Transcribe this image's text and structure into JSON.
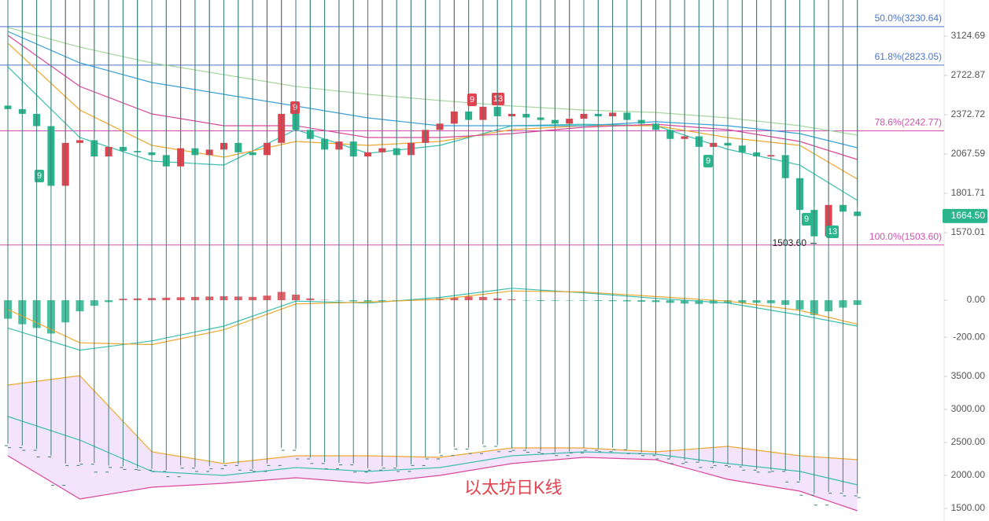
{
  "watermark": "以太坊日K线",
  "chart_data": [
    {
      "type": "candlestick",
      "log_scale": true,
      "ylim": [
        1430,
        3546
      ],
      "yticks": [
        3124.69,
        2722.87,
        2372.72,
        2067.59,
        1801.71,
        1570.01
      ],
      "up_color": "#e0434f",
      "down_color": "#2bb58d",
      "open": [
        2450,
        2420,
        2380,
        2280,
        1850,
        2150,
        2170,
        2050,
        2120,
        2090,
        2080,
        2060,
        1980,
        2110,
        2060,
        2100,
        2150,
        2080,
        2060,
        2150,
        2380,
        2250,
        2180,
        2100,
        2160,
        2050,
        2080,
        2110,
        2060,
        2150,
        2250,
        2300,
        2400,
        2330,
        2440,
        2360,
        2380,
        2350,
        2330,
        2300,
        2340,
        2380,
        2360,
        2390,
        2330,
        2300,
        2250,
        2180,
        2200,
        2120,
        2150,
        2130,
        2080,
        2050,
        2060,
        1900,
        1700,
        1550,
        1730,
        1690
      ],
      "high": [
        2480,
        2450,
        2400,
        2300,
        2180,
        2200,
        2190,
        2150,
        2140,
        2110,
        2100,
        2080,
        2150,
        2130,
        2140,
        2190,
        2170,
        2100,
        2180,
        2420,
        2400,
        2270,
        2200,
        2190,
        2180,
        2110,
        2140,
        2130,
        2170,
        2280,
        2330,
        2430,
        2420,
        2470,
        2460,
        2410,
        2400,
        2370,
        2350,
        2360,
        2420,
        2400,
        2420,
        2400,
        2350,
        2320,
        2260,
        2230,
        2210,
        2180,
        2170,
        2150,
        2100,
        2080,
        2070,
        1920,
        1720,
        1750,
        1750,
        1720
      ],
      "low": {
        "value": 1503.6,
        "label": "1503.60"
      },
      "close": [
        2420,
        2380,
        2280,
        1850,
        2150,
        2170,
        2050,
        2120,
        2090,
        2080,
        2060,
        1980,
        2110,
        2060,
        2100,
        2150,
        2080,
        2060,
        2150,
        2380,
        2250,
        2180,
        2100,
        2160,
        2050,
        2080,
        2110,
        2060,
        2150,
        2250,
        2300,
        2400,
        2330,
        2440,
        2360,
        2380,
        2350,
        2330,
        2300,
        2340,
        2380,
        2360,
        2390,
        2330,
        2300,
        2250,
        2180,
        2200,
        2120,
        2150,
        2130,
        2080,
        2050,
        2060,
        1900,
        1700,
        1550,
        1730,
        1690,
        1664.5
      ],
      "ma_x": [
        0,
        5,
        10,
        15,
        20,
        25,
        30,
        35,
        40,
        45,
        50,
        55,
        59
      ],
      "ma": [
        {
          "color": "#3cbfb0",
          "values": [
            2806,
            2191,
            2017,
            1989,
            2252,
            2073,
            2131,
            2283,
            2295,
            2283,
            2102,
            1989,
            1758
          ]
        },
        {
          "color": "#f0a830",
          "values": [
            3048,
            2412,
            2131,
            2045,
            2161,
            2131,
            2161,
            2252,
            2283,
            2283,
            2191,
            2131,
            1894
          ]
        },
        {
          "color": "#d9479c",
          "values": [
            3133,
            2620,
            2379,
            2283,
            2283,
            2191,
            2191,
            2221,
            2271,
            2295,
            2252,
            2161,
            2028
          ]
        },
        {
          "color": "#3aa0d8",
          "values": [
            3176,
            2845,
            2656,
            2549,
            2446,
            2347,
            2283,
            2283,
            2283,
            2315,
            2283,
            2221,
            2114
          ]
        },
        {
          "color": "#a8d8a0",
          "values": [
            3220,
            3006,
            2845,
            2730,
            2620,
            2549,
            2494,
            2446,
            2412,
            2392,
            2347,
            2283,
            2209
          ]
        }
      ],
      "levels": [
        {
          "value": 3230.64,
          "label": "50.0%(3230.64)",
          "color": "#4a74c9"
        },
        {
          "value": 2823.05,
          "label": "61.8%(2823.05)",
          "color": "#4a74c9"
        },
        {
          "value": 2242.77,
          "label": "78.6%(2242.77)",
          "color": "#d04fb0"
        },
        {
          "value": 1503.6,
          "label": "100.0%(1503.60)",
          "color": "#d04fb0"
        }
      ],
      "last": {
        "value": 1664.5,
        "label": "1664.50",
        "color": "#2bb58d"
      },
      "markers": [
        {
          "label": "9",
          "color": "#e0434f"
        },
        {
          "label": "9",
          "color": "#e0434f"
        },
        {
          "label": "13",
          "color": "#e0434f"
        },
        {
          "label": "9",
          "color": "#2bb58d"
        },
        {
          "label": "9",
          "color": "#2bb58d"
        },
        {
          "label": "9",
          "color": "#2bb58d"
        },
        {
          "label": "13",
          "color": "#2bb58d"
        }
      ]
    },
    {
      "type": "macd",
      "ylim": [
        -310,
        200
      ],
      "yticks": [
        {
          "value": 0,
          "label": "0.00"
        },
        {
          "value": -200,
          "label": "-200.00"
        }
      ],
      "up_color": "#e0434f",
      "down_color": "#2bb58d",
      "histogram": [
        -100,
        -130,
        -150,
        -180,
        -120,
        -60,
        -30,
        -10,
        8,
        10,
        12,
        14,
        16,
        18,
        20,
        22,
        20,
        18,
        25,
        45,
        30,
        10,
        2,
        -2,
        -6,
        -8,
        -5,
        -2,
        0,
        5,
        10,
        15,
        20,
        18,
        10,
        5,
        -2,
        -4,
        -3,
        -2,
        -3,
        -4,
        -5,
        -6,
        -8,
        -10,
        -14,
        -18,
        -20,
        -18,
        -16,
        -15,
        -14,
        -16,
        -25,
        -50,
        -80,
        -60,
        -40,
        -25
      ],
      "x": [
        0,
        5,
        10,
        15,
        20,
        25,
        30,
        35,
        40,
        45,
        50,
        55,
        59
      ],
      "series": [
        {
          "color": "#3cbfb0",
          "values": [
            -150,
            -270,
            -220,
            -140,
            -5,
            -15,
            15,
            65,
            40,
            10,
            -15,
            -80,
            -140
          ]
        },
        {
          "color": "#f0a830",
          "values": [
            -50,
            -230,
            -240,
            -160,
            -20,
            -10,
            5,
            50,
            45,
            20,
            -5,
            -55,
            -130
          ]
        }
      ]
    },
    {
      "type": "bollinger",
      "ylim": [
        1345,
        3607
      ],
      "yticks": [
        {
          "value": 3500,
          "label": "3500.00"
        },
        {
          "value": 3000,
          "label": "3000.00"
        },
        {
          "value": 2500,
          "label": "2500.00"
        },
        {
          "value": 2000,
          "label": "2000.00"
        },
        {
          "value": 1500,
          "label": "1500.00"
        }
      ],
      "bar_color": "#3a7f7a",
      "band_fill": "#f4e4fb",
      "x": [
        0,
        5,
        10,
        15,
        20,
        25,
        30,
        35,
        40,
        45,
        50,
        55,
        59
      ],
      "series": [
        {
          "color": "#f0a830",
          "values": [
            3369,
            3512,
            2357,
            2179,
            2298,
            2298,
            2274,
            2417,
            2417,
            2357,
            2440,
            2298,
            2238
          ]
        },
        {
          "color": "#3cbfb0",
          "values": [
            2893,
            2536,
            2060,
            2000,
            2119,
            2060,
            2119,
            2298,
            2357,
            2321,
            2179,
            2060,
            1857
          ]
        },
        {
          "color": "#d9479c",
          "values": [
            2298,
            1643,
            1821,
            1881,
            1964,
            1881,
            2000,
            2179,
            2274,
            2238,
            1940,
            1762,
            1464
          ]
        }
      ]
    }
  ]
}
